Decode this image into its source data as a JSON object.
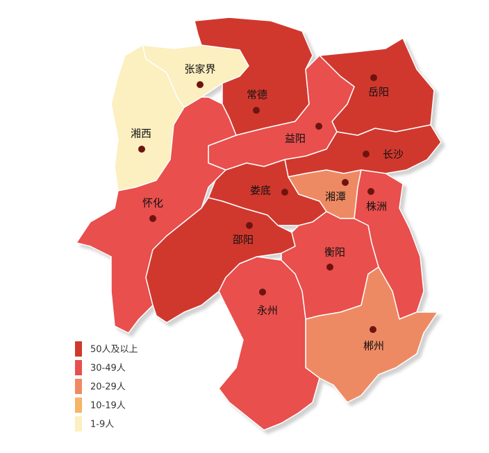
{
  "regions": [
    {
      "name": "张家界",
      "level": 4
    },
    {
      "name": "湘西",
      "level": 4
    },
    {
      "name": "常德",
      "level": 0
    },
    {
      "name": "岳阳",
      "level": 0
    },
    {
      "name": "益阳",
      "level": 1
    },
    {
      "name": "长沙",
      "level": 0
    },
    {
      "name": "怀化",
      "level": 1
    },
    {
      "name": "娄底",
      "level": 0
    },
    {
      "name": "湘潭",
      "level": 2
    },
    {
      "name": "株洲",
      "level": 1
    },
    {
      "name": "邵阳",
      "level": 0
    },
    {
      "name": "衡阳",
      "level": 1
    },
    {
      "name": "郴州",
      "level": 2
    },
    {
      "name": "永州",
      "level": 1
    }
  ],
  "legend": [
    {
      "label": "50人及以上",
      "color": "#d0392d"
    },
    {
      "label": "30-49人",
      "color": "#e8504d"
    },
    {
      "label": "20-29人",
      "color": "#ee8a63"
    },
    {
      "label": "10-19人",
      "color": "#f6b466"
    },
    {
      "label": "1-9人",
      "color": "#fcefc0"
    }
  ]
}
